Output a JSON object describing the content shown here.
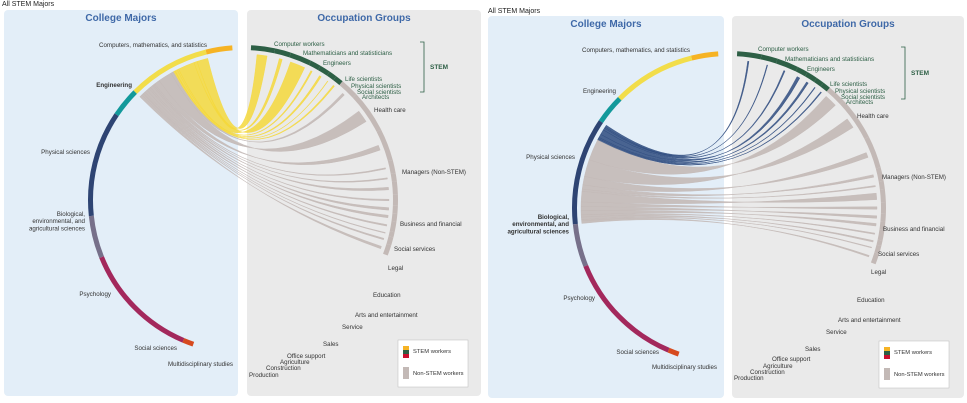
{
  "captions": {
    "left": "All STEM Majors",
    "right": "All STEM Majors"
  },
  "colors": {
    "stem_yellow": "#f6b324",
    "stem_green": "#2d5f45",
    "stem_red": "#c8102e",
    "non_stem": "#c3b9b6",
    "panel_left": "#e3eef8",
    "panel_right": "#eaeaea",
    "flow_engineering": "#f5d83c",
    "flow_biological": "#2e4b7f"
  },
  "chart_data": [
    {
      "type": "chord",
      "title_left": "College Majors",
      "title_right": "Occupation Groups",
      "highlighted_major": "Engineering",
      "majors": [
        {
          "name": "Computers, mathematics, and statistics",
          "color": "#f6b324"
        },
        {
          "name": "Engineering",
          "color": "#f2dd4a"
        },
        {
          "name": "Physical sciences",
          "color": "#12999b"
        },
        {
          "name": "Biological, environmental, and agricultural sciences",
          "color": "#2e4473"
        },
        {
          "name": "Psychology",
          "color": "#77708a"
        },
        {
          "name": "Social sciences",
          "color": "#a3285c"
        },
        {
          "name": "Multidisciplinary studies",
          "color": "#d64a1f"
        }
      ],
      "occupations": [
        {
          "name": "Computer workers",
          "group": "STEM"
        },
        {
          "name": "Mathematicians and statisticians",
          "group": "STEM"
        },
        {
          "name": "Engineers",
          "group": "STEM"
        },
        {
          "name": "Life scientists",
          "group": "STEM"
        },
        {
          "name": "Physical scientists",
          "group": "STEM"
        },
        {
          "name": "Social scientists",
          "group": "STEM"
        },
        {
          "name": "Architects",
          "group": "STEM"
        },
        {
          "name": "Health care",
          "group": "Non-STEM"
        },
        {
          "name": "Managers (Non-STEM)",
          "group": "Non-STEM"
        },
        {
          "name": "Business and financial",
          "group": "Non-STEM"
        },
        {
          "name": "Social services",
          "group": "Non-STEM"
        },
        {
          "name": "Legal",
          "group": "Non-STEM"
        },
        {
          "name": "Education",
          "group": "Non-STEM"
        },
        {
          "name": "Arts and entertainment",
          "group": "Non-STEM"
        },
        {
          "name": "Service",
          "group": "Non-STEM"
        },
        {
          "name": "Sales",
          "group": "Non-STEM"
        },
        {
          "name": "Office support",
          "group": "Non-STEM"
        },
        {
          "name": "Agriculture",
          "group": "Non-STEM"
        },
        {
          "name": "Construction",
          "group": "Non-STEM"
        },
        {
          "name": "Production",
          "group": "Non-STEM"
        }
      ],
      "stem_bracket_label": "STEM",
      "legend": [
        "STEM workers",
        "Non-STEM workers"
      ]
    },
    {
      "type": "chord",
      "title_left": "College Majors",
      "title_right": "Occupation Groups",
      "highlighted_major": "Biological, environmental, and agricultural sciences",
      "majors": [
        {
          "name": "Computers, mathematics, and statistics",
          "color": "#f6b324"
        },
        {
          "name": "Engineering",
          "color": "#f2dd4a"
        },
        {
          "name": "Physical sciences",
          "color": "#12999b"
        },
        {
          "name": "Biological, environmental, and agricultural sciences",
          "color": "#2e4473"
        },
        {
          "name": "Psychology",
          "color": "#77708a"
        },
        {
          "name": "Social sciences",
          "color": "#a3285c"
        },
        {
          "name": "Multidisciplinary studies",
          "color": "#d64a1f"
        }
      ],
      "occupations": [
        {
          "name": "Computer workers",
          "group": "STEM"
        },
        {
          "name": "Mathematicians and statisticians",
          "group": "STEM"
        },
        {
          "name": "Engineers",
          "group": "STEM"
        },
        {
          "name": "Life scientists",
          "group": "STEM"
        },
        {
          "name": "Physical scientists",
          "group": "STEM"
        },
        {
          "name": "Social scientists",
          "group": "STEM"
        },
        {
          "name": "Architects",
          "group": "STEM"
        },
        {
          "name": "Health care",
          "group": "Non-STEM"
        },
        {
          "name": "Managers (Non-STEM)",
          "group": "Non-STEM"
        },
        {
          "name": "Business and financial",
          "group": "Non-STEM"
        },
        {
          "name": "Social services",
          "group": "Non-STEM"
        },
        {
          "name": "Legal",
          "group": "Non-STEM"
        },
        {
          "name": "Education",
          "group": "Non-STEM"
        },
        {
          "name": "Arts and entertainment",
          "group": "Non-STEM"
        },
        {
          "name": "Service",
          "group": "Non-STEM"
        },
        {
          "name": "Sales",
          "group": "Non-STEM"
        },
        {
          "name": "Office support",
          "group": "Non-STEM"
        },
        {
          "name": "Agriculture",
          "group": "Non-STEM"
        },
        {
          "name": "Construction",
          "group": "Non-STEM"
        },
        {
          "name": "Production",
          "group": "Non-STEM"
        }
      ],
      "stem_bracket_label": "STEM",
      "legend": [
        "STEM workers",
        "Non-STEM workers"
      ]
    }
  ]
}
